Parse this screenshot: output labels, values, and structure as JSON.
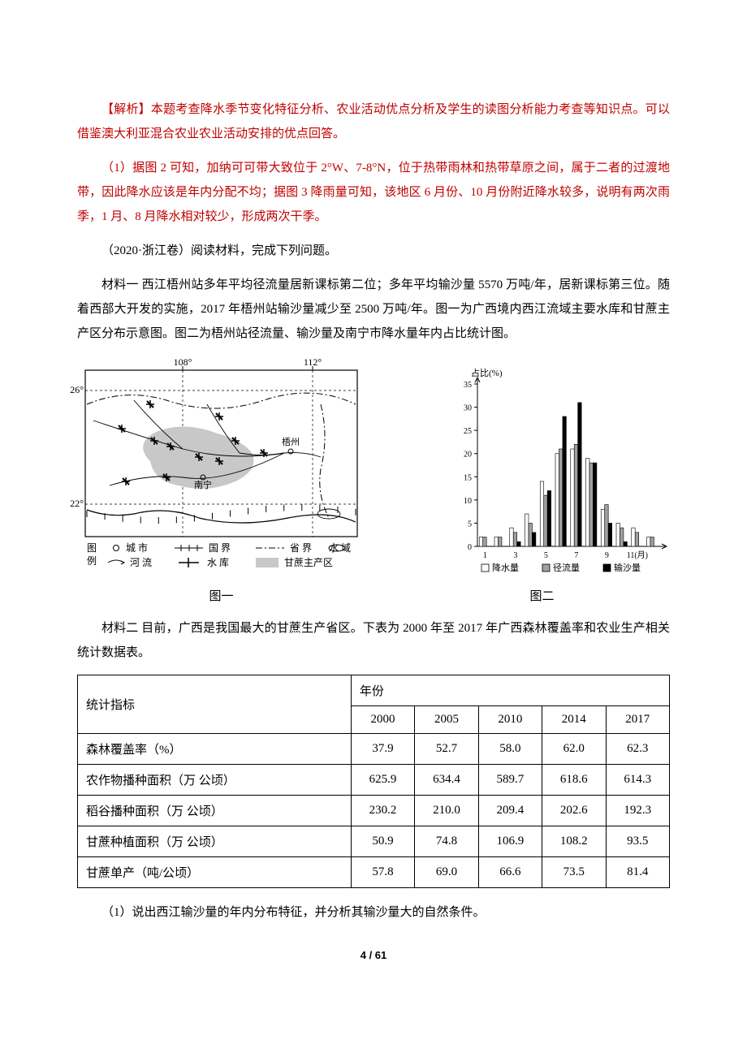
{
  "paragraphs": {
    "p1": "【解析】本题考查降水季节变化特征分析、农业活动优点分析及学生的读图分析能力考查等知识点。可以借鉴澳大利亚混合农业农业活动安排的优点回答。",
    "p2": "（1）据图 2 可知，加纳可可带大致位于 2°W、7-8°N，位于热带雨林和热带草原之间，属于二者的过渡地带，因此降水应该是年内分配不均；据图 3 降雨量可知，该地区 6 月份、10 月份附近降水较多，说明有两次雨季，1 月、8 月降水相对较少，形成两次干季。",
    "p3": "（2020·浙江卷）阅读材料，完成下列问题。",
    "p4": "材料一  西江梧州站多年平均径流量居新课标第二位；多年平均输沙量 5570 万吨/年，居新课标第三位。随着西部大开发的实施，2017 年梧州站输沙量减少至 2500 万吨/年。图一为广西境内西江流域主要水库和甘蔗主产区分布示意图。图二为梧州站径流量、输沙量及南宁市降水量年内占比统计图。",
    "p5": "材料二  目前，广西是我国最大的甘蔗生产省区。下表为 2000 年至 2017 年广西森林覆盖率和农业生产相关统计数据表。",
    "p6": "（1）说出西江输沙量的年内分布特征，并分析其输沙量大的自然条件。"
  },
  "map": {
    "lon_labels": [
      "108°",
      "112°"
    ],
    "lat_labels": [
      "26°",
      "22°"
    ],
    "cities": [
      "南宁",
      "梧州"
    ],
    "legend_title": "图\n例",
    "legend_items": [
      {
        "symbol": "city",
        "label": "城 市"
      },
      {
        "symbol": "river",
        "label": "河 流"
      },
      {
        "symbol": "natl",
        "label": "国   界"
      },
      {
        "symbol": "dam",
        "label": "水 库"
      },
      {
        "symbol": "prov",
        "label": "省   界"
      },
      {
        "symbol": "zone",
        "label": "甘蔗主产区"
      },
      {
        "symbol": "water",
        "label": "水 域"
      }
    ],
    "stroke_color": "#000000",
    "bg_color": "#ffffff",
    "zone_color": "#c8c8c8"
  },
  "chart": {
    "y_label": "占比(%)",
    "y_max": 35,
    "y_tick_step": 5,
    "x_ticks": [
      "1",
      "3",
      "5",
      "7",
      "9",
      "11(月)"
    ],
    "series": [
      {
        "name": "降水量",
        "fill": "#ffffff",
        "stroke": "#000000",
        "values": [
          2,
          2,
          4,
          7,
          14,
          20,
          21,
          19,
          8,
          5,
          4,
          2
        ]
      },
      {
        "name": "径流量",
        "fill": "#a0a0a0",
        "stroke": "#000000",
        "values": [
          2,
          2,
          3,
          5,
          11,
          21,
          22,
          18,
          9,
          4,
          3,
          2
        ]
      },
      {
        "name": "输沙量",
        "fill": "#000000",
        "stroke": "#000000",
        "values": [
          0,
          0,
          1,
          3,
          12,
          28,
          31,
          18,
          5,
          1,
          0,
          0
        ]
      }
    ],
    "axis_color": "#000000",
    "tick_fontsize": 10
  },
  "captions": {
    "fig1": "图一",
    "fig2": "图二"
  },
  "table": {
    "header_main": "统计指标",
    "header_year": "年份",
    "years": [
      "2000",
      "2005",
      "2010",
      "2014",
      "2017"
    ],
    "rows": [
      {
        "label": "森林覆盖率（%）",
        "values": [
          "37.9",
          "52.7",
          "58.0",
          "62.0",
          "62.3"
        ]
      },
      {
        "label": "农作物播种面积（万 公顷）",
        "values": [
          "625.9",
          "634.4",
          "589.7",
          "618.6",
          "614.3"
        ]
      },
      {
        "label": "稻谷播种面积（万 公顷）",
        "values": [
          "230.2",
          "210.0",
          "209.4",
          "202.6",
          "192.3"
        ]
      },
      {
        "label": "甘蔗种植面积（万 公顷）",
        "values": [
          "50.9",
          "74.8",
          "106.9",
          "108.2",
          "93.5"
        ]
      },
      {
        "label": "甘蔗单产（吨/公顷）",
        "values": [
          "57.8",
          "69.0",
          "66.6",
          "73.5",
          "81.4"
        ]
      }
    ]
  },
  "page_number": "4 / 61"
}
